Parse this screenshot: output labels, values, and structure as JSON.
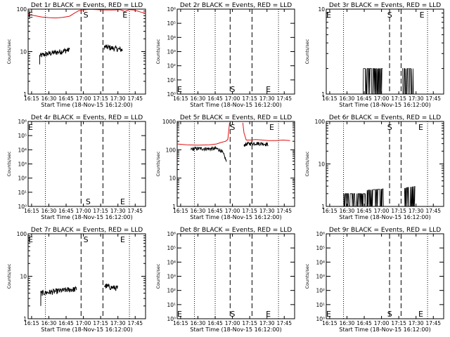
{
  "layout": {
    "rows": 3,
    "cols": 3
  },
  "chart_data": [
    {
      "type": "line",
      "title": "Det 1r  BLACK = Events, RED = LLD",
      "xlabel": "Start Time (18-Nov-15 16:12:00)",
      "ylabel": "Counts/sec",
      "x_tick_labels": [
        "16:15",
        "16:30",
        "16:45",
        "17:00",
        "17:15",
        "17:30",
        "17:45"
      ],
      "x_tick_minutes": [
        15,
        30,
        45,
        60,
        75,
        90,
        105
      ],
      "xlim_minutes": [
        12,
        114
      ],
      "y_scale": "log",
      "ylim": [
        1,
        100
      ],
      "y_tick_labels": [
        "1",
        "10",
        "100"
      ],
      "markers": [
        {
          "label": "E",
          "minutes": 12,
          "pos": "top"
        },
        {
          "label": "S",
          "minutes": 60,
          "pos": "top"
        },
        {
          "label": "E",
          "minutes": 94,
          "pos": "top"
        }
      ],
      "dashed_lines_minutes": [
        58,
        77
      ],
      "dotted_lines_minutes": [
        27,
        100
      ],
      "series": [
        {
          "name": "Events",
          "color": "#000000",
          "style": "noisy",
          "segments": [
            {
              "x": [
                22,
                30,
                40,
                48
              ],
              "y": [
                8,
                9,
                10,
                11
              ],
              "floor": 5
            },
            {
              "x": [
                78,
                86,
                94
              ],
              "y": [
                13,
                12,
                11
              ]
            }
          ]
        },
        {
          "name": "LLD",
          "color": "#e01010",
          "segments": [
            {
              "x": [
                12,
                18,
                24,
                30,
                36,
                42,
                48,
                52,
                56,
                60,
                64,
                68,
                72,
                76,
                80,
                84,
                88,
                92,
                96,
                100,
                104,
                110,
                114
              ],
              "y": [
                75,
                70,
                65,
                63,
                62,
                64,
                68,
                80,
                92,
                96,
                98,
                98,
                97,
                96,
                95,
                95,
                96,
                97,
                88,
                97,
                95,
                85,
                80
              ]
            }
          ]
        }
      ]
    },
    {
      "type": "line",
      "title": "Det 2r  BLACK = Events, RED = LLD",
      "xlabel": "Start Time (18-Nov-15 16:12:00)",
      "ylabel": "Counts/sec",
      "x_tick_labels": [
        "16:15",
        "16:30",
        "16:45",
        "17:00",
        "17:15",
        "17:30",
        "17:45"
      ],
      "x_tick_minutes": [
        15,
        30,
        45,
        60,
        75,
        90,
        105
      ],
      "xlim_minutes": [
        12,
        114
      ],
      "y_scale": "log",
      "ylim": [
        1,
        1000000
      ],
      "y_tick_labels": [
        "10⁰",
        "10¹",
        "10²",
        "10³",
        "10⁴",
        "10⁵",
        "10⁶"
      ],
      "markers": [
        {
          "label": "E",
          "minutes": 12,
          "pos": "bottom"
        },
        {
          "label": "S",
          "minutes": 58,
          "pos": "bottom"
        },
        {
          "label": "E",
          "minutes": 89,
          "pos": "bottom"
        }
      ],
      "dashed_lines_minutes": [
        58,
        77
      ],
      "dotted_lines_minutes": [
        27,
        45,
        100
      ],
      "series": []
    },
    {
      "type": "line",
      "title": "Det 3r  BLACK = Events, RED = LLD",
      "xlabel": "Start Time (18-Nov-15 16:12:00)",
      "ylabel": "Counts/sec",
      "x_tick_labels": [
        "16:15",
        "16:30",
        "16:45",
        "17:00",
        "17:15",
        "17:30",
        "17:45"
      ],
      "x_tick_minutes": [
        15,
        30,
        45,
        60,
        75,
        90,
        105
      ],
      "xlim_minutes": [
        12,
        114
      ],
      "y_scale": "log",
      "ylim": [
        1,
        10
      ],
      "y_tick_labels": [
        "1",
        "10"
      ],
      "markers": [
        {
          "label": "E",
          "minutes": 12,
          "pos": "top"
        },
        {
          "label": "S",
          "minutes": 65,
          "pos": "top"
        },
        {
          "label": "E",
          "minutes": 93,
          "pos": "top"
        }
      ],
      "dashed_lines_minutes": [
        67,
        77
      ],
      "dotted_lines_minutes": [
        27,
        100
      ],
      "series": [
        {
          "name": "Events",
          "color": "#000000",
          "style": "binary",
          "low": 1,
          "high": 2,
          "segments": [
            {
              "x": [
                44,
                61
              ],
              "y": [
                2,
                2
              ]
            },
            {
              "x": [
                78,
                88
              ],
              "y": [
                2,
                2
              ]
            }
          ]
        }
      ]
    },
    {
      "type": "line",
      "title": "Det 4r  BLACK = Events, RED = LLD",
      "xlabel": "Start Time (18-Nov-15 16:12:00)",
      "ylabel": "Counts/sec",
      "x_tick_labels": [
        "16:15",
        "16:30",
        "16:45",
        "17:00",
        "17:15",
        "17:30",
        "17:45"
      ],
      "x_tick_minutes": [
        15,
        30,
        45,
        60,
        75,
        90,
        105
      ],
      "xlim_minutes": [
        12,
        114
      ],
      "y_scale": "log",
      "ylim": [
        1,
        1000000
      ],
      "y_tick_labels": [
        "10⁰",
        "10¹",
        "10²",
        "10³",
        "10⁴",
        "10⁵",
        "10⁶"
      ],
      "markers": [
        {
          "label": "E",
          "minutes": 12,
          "pos": "top"
        },
        {
          "label": "S",
          "minutes": 62,
          "pos": "bottom"
        },
        {
          "label": "E",
          "minutes": 92,
          "pos": "bottom"
        }
      ],
      "dashed_lines_minutes": [
        58,
        77
      ],
      "dotted_lines_minutes": [
        27,
        100
      ],
      "series": []
    },
    {
      "type": "line",
      "title": "Det 5r  BLACK = Events, RED = LLD",
      "xlabel": "Start Time (18-Nov-15 16:12:00)",
      "ylabel": "Counts/sec",
      "x_tick_labels": [
        "16:15",
        "16:30",
        "16:45",
        "17:00",
        "17:15",
        "17:30",
        "17:45"
      ],
      "x_tick_minutes": [
        15,
        30,
        45,
        60,
        75,
        90,
        105
      ],
      "xlim_minutes": [
        12,
        114
      ],
      "y_scale": "log",
      "ylim": [
        1,
        1000
      ],
      "y_tick_labels": [
        "1",
        "10",
        "100",
        "1000"
      ],
      "markers": [
        {
          "label": "S",
          "minutes": 58,
          "pos": "top"
        },
        {
          "label": "E",
          "minutes": 92,
          "pos": "top"
        }
      ],
      "dashed_lines_minutes": [
        58,
        77
      ],
      "dotted_lines_minutes": [
        27,
        100
      ],
      "series": [
        {
          "name": "LLD",
          "color": "#e01010",
          "segments": [
            {
              "x": [
                12,
                20,
                30,
                40,
                46,
                50,
                54,
                56,
                57.5
              ],
              "y": [
                160,
                150,
                145,
                150,
                160,
                180,
                200,
                230,
                900
              ]
            },
            {
              "x": [
                69,
                70,
                72,
                76,
                80,
                86,
                92,
                98,
                104,
                110
              ],
              "y": [
                900,
                400,
                220,
                220,
                230,
                220,
                210,
                210,
                220,
                210
              ]
            }
          ]
        },
        {
          "name": "Events",
          "color": "#000000",
          "style": "noisy",
          "segments": [
            {
              "x": [
                24,
                30,
                36,
                42,
                46,
                50,
                53,
                55
              ],
              "y": [
                105,
                110,
                110,
                108,
                110,
                95,
                60,
                35
              ]
            },
            {
              "x": [
                70,
                74,
                80,
                86,
                91
              ],
              "y": [
                150,
                165,
                170,
                165,
                155
              ]
            }
          ]
        }
      ]
    },
    {
      "type": "line",
      "title": "Det 6r  BLACK = Events, RED = LLD",
      "xlabel": "Start Time (18-Nov-15 16:12:00)",
      "ylabel": "Counts/sec",
      "x_tick_labels": [
        "16:15",
        "16:30",
        "16:45",
        "17:00",
        "17:15",
        "17:30",
        "17:45"
      ],
      "x_tick_minutes": [
        15,
        30,
        45,
        60,
        75,
        90,
        105
      ],
      "xlim_minutes": [
        12,
        114
      ],
      "y_scale": "log",
      "ylim": [
        1,
        100
      ],
      "y_tick_labels": [
        "1",
        "10",
        "100"
      ],
      "markers": [
        {
          "label": "S",
          "minutes": 65,
          "pos": "top"
        },
        {
          "label": "E",
          "minutes": 92,
          "pos": "top"
        }
      ],
      "dashed_lines_minutes": [
        67,
        77
      ],
      "dotted_lines_minutes": [
        27,
        100
      ],
      "series": [
        {
          "name": "Events",
          "color": "#000000",
          "style": "binary",
          "low": 1,
          "high": 2,
          "segments": [
            {
              "x": [
                27,
                46
              ],
              "y": [
                2,
                2
              ]
            },
            {
              "x": [
                46,
                62
              ],
              "y": [
                2.4,
                2.6
              ]
            },
            {
              "x": [
                80,
                89
              ],
              "y": [
                2.7,
                3
              ]
            }
          ]
        }
      ]
    },
    {
      "type": "line",
      "title": "Det 7r  BLACK = Events, RED = LLD",
      "xlabel": "Start Time (18-Nov-15 16:12:00)",
      "ylabel": "Counts/sec",
      "x_tick_labels": [
        "16:15",
        "16:30",
        "16:45",
        "17:00",
        "17:15",
        "17:30",
        "17:45"
      ],
      "x_tick_minutes": [
        15,
        30,
        45,
        60,
        75,
        90,
        105
      ],
      "xlim_minutes": [
        12,
        114
      ],
      "y_scale": "log",
      "ylim": [
        1,
        100
      ],
      "y_tick_labels": [
        "1",
        "10",
        "100"
      ],
      "markers": [
        {
          "label": "E",
          "minutes": 12,
          "pos": "top"
        },
        {
          "label": "S",
          "minutes": 60,
          "pos": "top"
        },
        {
          "label": "E",
          "minutes": 92,
          "pos": "top"
        }
      ],
      "dashed_lines_minutes": [
        58,
        77
      ],
      "dotted_lines_minutes": [
        27,
        100
      ],
      "series": [
        {
          "name": "Events",
          "color": "#000000",
          "style": "noisy",
          "segments": [
            {
              "x": [
                23,
                30,
                38,
                46,
                54
              ],
              "y": [
                4,
                4.2,
                4.5,
                4.8,
                5
              ],
              "floor": 2
            },
            {
              "x": [
                78,
                84,
                90
              ],
              "y": [
                6,
                5.5,
                5.2
              ]
            }
          ]
        }
      ]
    },
    {
      "type": "line",
      "title": "Det 8r  BLACK = Events, RED = LLD",
      "xlabel": "Start Time (18-Nov-15 16:12:00)",
      "ylabel": "Counts/sec",
      "x_tick_labels": [
        "16:15",
        "16:30",
        "16:45",
        "17:00",
        "17:15",
        "17:30",
        "17:45"
      ],
      "x_tick_minutes": [
        15,
        30,
        45,
        60,
        75,
        90,
        105
      ],
      "xlim_minutes": [
        12,
        114
      ],
      "y_scale": "log",
      "ylim": [
        1,
        1000000
      ],
      "y_tick_labels": [
        "10⁰",
        "10¹",
        "10²",
        "10³",
        "10⁴",
        "10⁵",
        "10⁶"
      ],
      "markers": [
        {
          "label": "E",
          "minutes": 12,
          "pos": "bottom"
        },
        {
          "label": "S",
          "minutes": 58,
          "pos": "bottom"
        },
        {
          "label": "E",
          "minutes": 89,
          "pos": "bottom"
        }
      ],
      "dashed_lines_minutes": [
        58,
        77
      ],
      "dotted_lines_minutes": [
        27,
        45,
        100
      ],
      "series": []
    },
    {
      "type": "line",
      "title": "Det 9r  BLACK = Events, RED = LLD",
      "xlabel": "Start Time (18-Nov-15 16:12:00)",
      "ylabel": "Counts/sec",
      "x_tick_labels": [
        "16:15",
        "16:30",
        "16:45",
        "17:00",
        "17:15",
        "17:30",
        "17:45"
      ],
      "x_tick_minutes": [
        15,
        30,
        45,
        60,
        75,
        90,
        105
      ],
      "xlim_minutes": [
        12,
        114
      ],
      "y_scale": "log",
      "ylim": [
        1,
        1000000
      ],
      "y_tick_labels": [
        "10⁰",
        "10¹",
        "10²",
        "10³",
        "10⁴",
        "10⁵",
        "10⁶"
      ],
      "markers": [
        {
          "label": "E",
          "minutes": 12,
          "pos": "bottom"
        },
        {
          "label": "S",
          "minutes": 65,
          "pos": "bottom"
        },
        {
          "label": "E",
          "minutes": 92,
          "pos": "bottom"
        }
      ],
      "dashed_lines_minutes": [
        67,
        77
      ],
      "dotted_lines_minutes": [
        27,
        100
      ],
      "series": []
    }
  ]
}
